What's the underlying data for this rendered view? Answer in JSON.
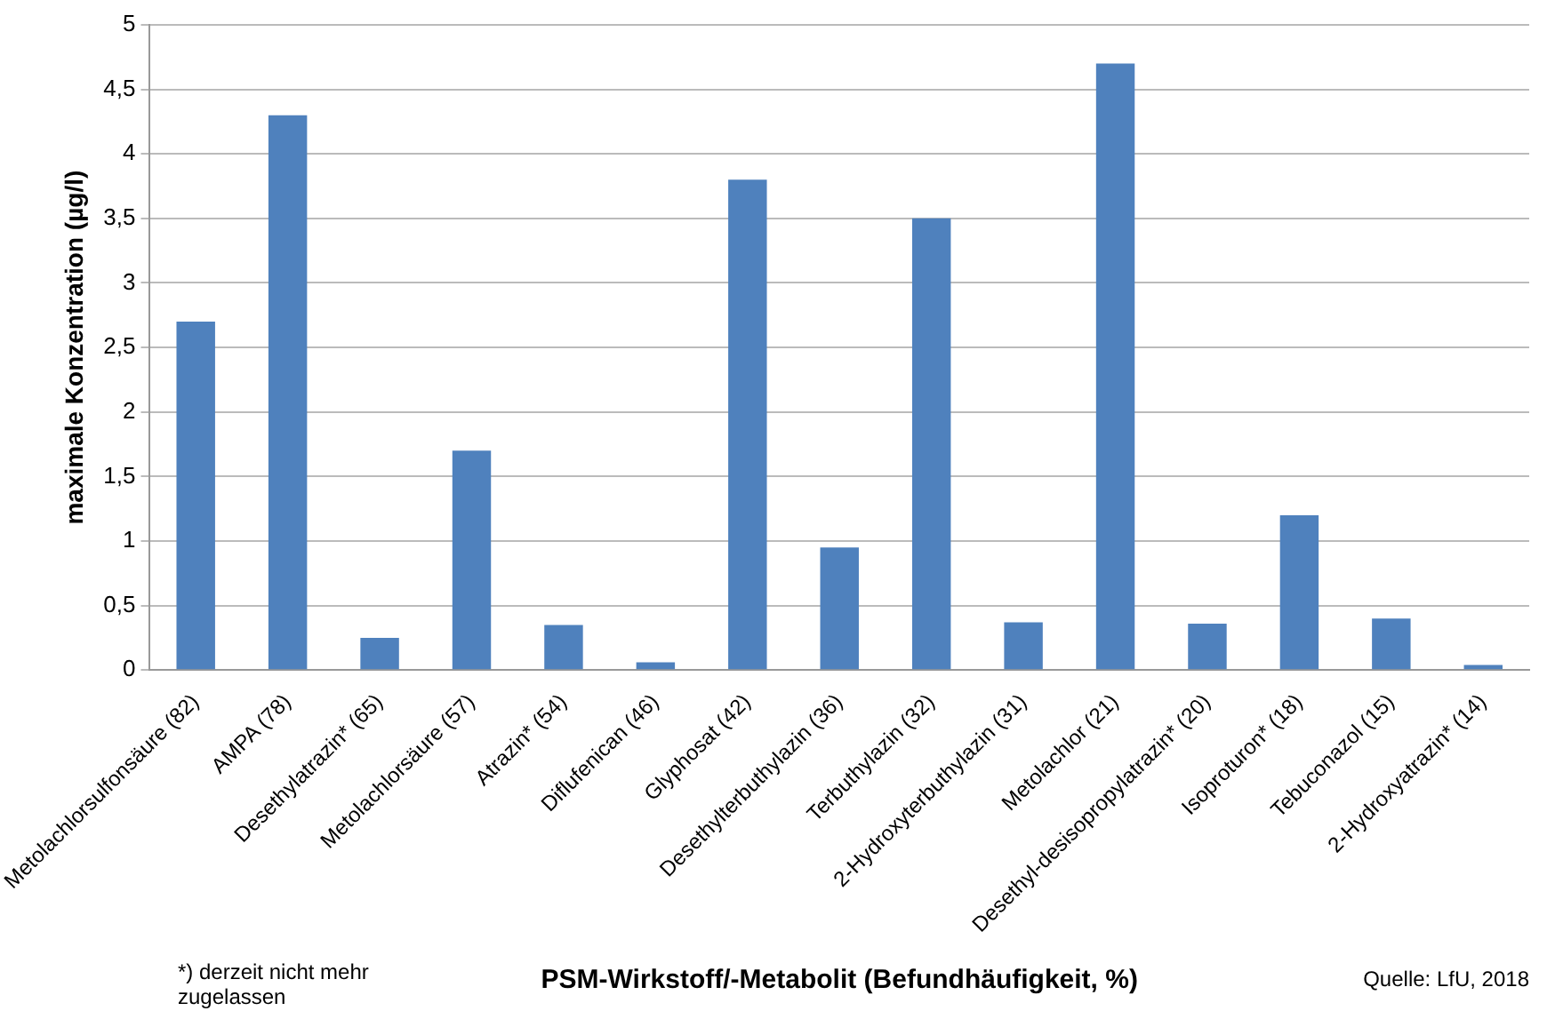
{
  "chart_data": {
    "type": "bar",
    "ylabel": "maximale Konzentration (µg/l)",
    "xlabel": "PSM-Wirkstoff/-Metabolit (Befundhäufigkeit, %)",
    "categories": [
      "Metolachlorsulfonsäure (82)",
      "AMPA (78)",
      "Desethylatrazin* (65)",
      "Metolachlorsäure (57)",
      "Atrazin* (54)",
      "Diflufenican (46)",
      "Glyphosat (42)",
      "Desethylterbuthylazin (36)",
      "Terbuthylazin (32)",
      "2-Hydroxyterbuthylazin (31)",
      "Metolachlor (21)",
      "Desethyl-desisopropylatrazin* (20)",
      "Isoproturon* (18)",
      "Tebuconazol (15)",
      "2-Hydroxyatrazin* (14)"
    ],
    "values": [
      2.7,
      4.3,
      0.25,
      1.7,
      0.35,
      0.06,
      3.8,
      0.95,
      3.5,
      0.37,
      4.7,
      0.36,
      1.2,
      0.4,
      0.04
    ],
    "color": "#4f81bd",
    "ylim": [
      0,
      5
    ],
    "yticks": [
      0,
      {
        "value": 0.5,
        "label": "0,5"
      },
      1,
      {
        "value": 1.5,
        "label": "1,5"
      },
      2,
      {
        "value": 2.5,
        "label": "2,5"
      },
      3,
      {
        "value": 3.5,
        "label": "3,5"
      },
      4,
      {
        "value": 4.5,
        "label": "4,5"
      },
      5
    ],
    "grid": "y",
    "legend": false,
    "annotations": [
      "*) derzeit nicht mehr zugelassen",
      "Quelle: LfU, 2018"
    ]
  }
}
